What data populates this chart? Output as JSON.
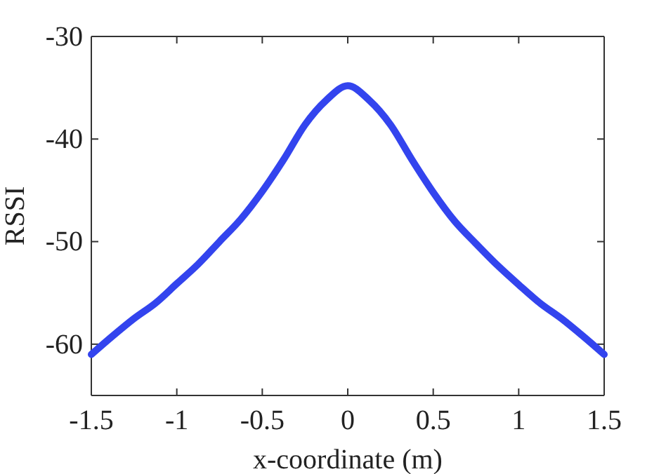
{
  "chart_data": {
    "type": "line",
    "xlabel": "x-coordinate (m)",
    "ylabel": "RSSI",
    "x": [
      -1.5,
      -1.375,
      -1.25,
      -1.125,
      -1.0,
      -0.875,
      -0.75,
      -0.625,
      -0.5,
      -0.375,
      -0.25,
      -0.125,
      0,
      0.125,
      0.25,
      0.375,
      0.5,
      0.625,
      0.75,
      0.875,
      1.0,
      1.125,
      1.25,
      1.375,
      1.5
    ],
    "series": [
      {
        "color": "#3344ee",
        "values": [
          -61.0,
          -59.2,
          -57.5,
          -56.0,
          -54.1,
          -52.2,
          -50.0,
          -47.8,
          -45.1,
          -42.0,
          -38.6,
          -36.2,
          -34.8,
          -36.2,
          -38.6,
          -42.0,
          -45.2,
          -48.0,
          -50.2,
          -52.3,
          -54.2,
          -56.0,
          -57.5,
          -59.2,
          -61.0
        ]
      }
    ],
    "xlim": [
      -1.5,
      1.5
    ],
    "ylim": [
      -65,
      -30
    ],
    "xticks": [
      -1.5,
      -1,
      -0.5,
      0,
      0.5,
      1,
      1.5
    ],
    "yticks": [
      -60,
      -50,
      -40,
      -30
    ],
    "grid": false,
    "legend": false,
    "marker": "none",
    "line_style": "solid"
  }
}
